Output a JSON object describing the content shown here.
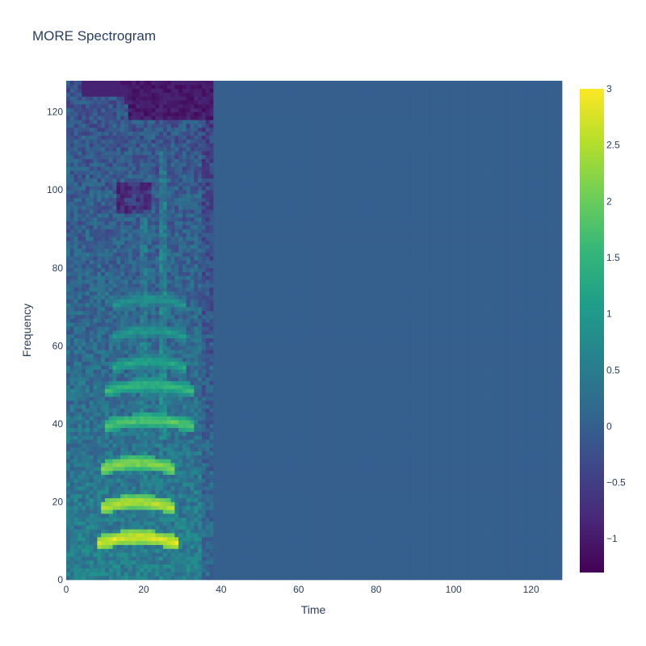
{
  "chart_data": {
    "type": "heatmap",
    "title": "MORE Spectrogram",
    "xlabel": "Time",
    "ylabel": "Frequency",
    "x_range": [
      0,
      127
    ],
    "y_range": [
      0,
      127
    ],
    "x_ticks": [
      0,
      20,
      40,
      60,
      80,
      100,
      120
    ],
    "y_ticks": [
      0,
      20,
      40,
      60,
      80,
      100,
      120
    ],
    "z_range": [
      -1.3,
      3
    ],
    "colorbar_ticks": [
      "3",
      "2.5",
      "2",
      "1.5",
      "1",
      "0.5",
      "0",
      "−0.5",
      "−1"
    ],
    "colorbar_tick_values": [
      3,
      2.5,
      2,
      1.5,
      1,
      0.5,
      0,
      -0.5,
      -1
    ],
    "colorscale": "Viridis",
    "colorscale_stops": [
      "#440154",
      "#482878",
      "#3e4989",
      "#31688e",
      "#26828e",
      "#1f9e89",
      "#35b779",
      "#6ece58",
      "#b5de2b",
      "#fde725"
    ],
    "grid_size": [
      128,
      128
    ],
    "active_time_columns": [
      0,
      37
    ],
    "padding_value": 0,
    "harmonic_bands": [
      {
        "freq": 9,
        "time": [
          8,
          28
        ],
        "value": 2.8
      },
      {
        "freq": 18,
        "time": [
          9,
          27
        ],
        "value": 2.6
      },
      {
        "freq": 28,
        "time": [
          9,
          27
        ],
        "value": 2.3
      },
      {
        "freq": 39,
        "time": [
          10,
          32
        ],
        "value": 1.9
      },
      {
        "freq": 48,
        "time": [
          10,
          32
        ],
        "value": 1.6
      },
      {
        "freq": 54,
        "time": [
          12,
          30
        ],
        "value": 1.3
      },
      {
        "freq": 62,
        "time": [
          12,
          30
        ],
        "value": 1.1
      },
      {
        "freq": 70,
        "time": [
          12,
          30
        ],
        "value": 1.0
      }
    ],
    "low_energy_region": {
      "freq": [
        118,
        127
      ],
      "time": [
        0,
        37
      ],
      "value": -1.2
    }
  }
}
